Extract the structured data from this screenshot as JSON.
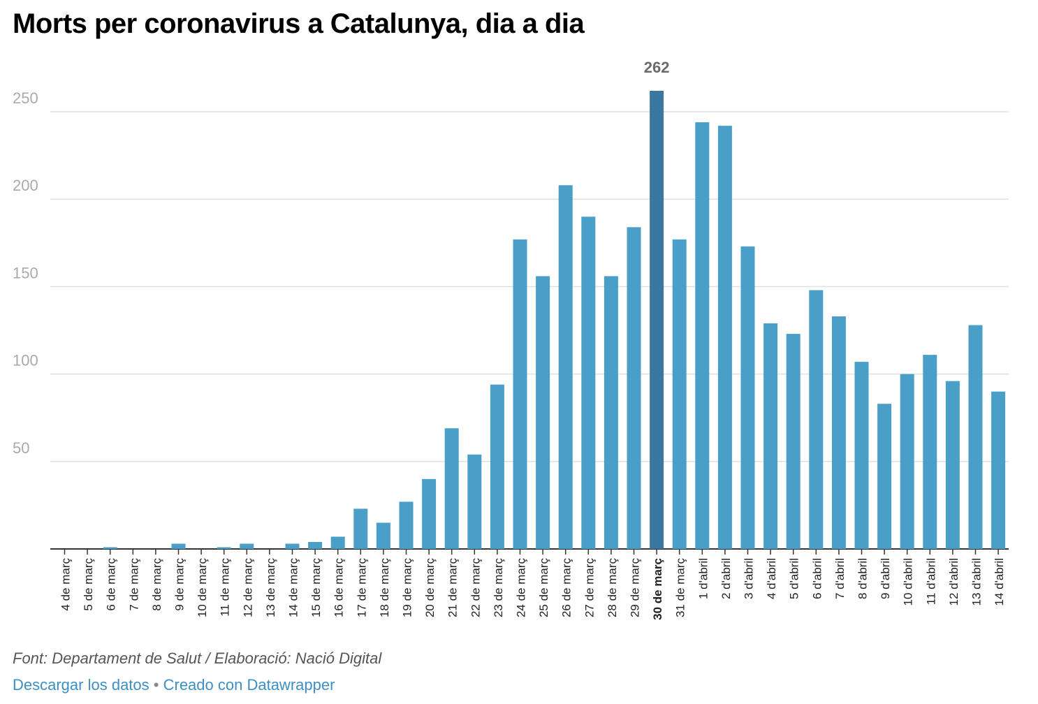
{
  "title": "Morts per coronavirus a Catalunya, dia a dia",
  "footer": {
    "source": "Font: Departament de Salut / Elaboració: Nació Digital",
    "download_label": "Descargar los datos",
    "separator": "•",
    "created_label": "Creado con Datawrapper"
  },
  "colors": {
    "bar": "#4a9fc9",
    "bar_highlight": "#3a77a1",
    "grid": "#e0e0e0",
    "axis_label": "#aaaaaa",
    "tick_label": "#222222",
    "highlight_label": "#6b6b6b"
  },
  "chart_data": {
    "type": "bar",
    "title": "Morts per coronavirus a Catalunya, dia a dia",
    "xlabel": "",
    "ylabel": "",
    "ylim": [
      0,
      262
    ],
    "yticks": [
      50,
      100,
      150,
      200,
      250
    ],
    "grid": true,
    "highlight": {
      "category": "30 de març",
      "label": "262"
    },
    "categories": [
      "4 de març",
      "5 de març",
      "6 de març",
      "7 de març",
      "8 de març",
      "9 de març",
      "10 de març",
      "11 de març",
      "12 de març",
      "13 de març",
      "14 de març",
      "15 de març",
      "16 de març",
      "17 de març",
      "18 de març",
      "19 de març",
      "20 de març",
      "21 de març",
      "22 de març",
      "23 de març",
      "24 de març",
      "25 de març",
      "26 de març",
      "27 de març",
      "28 de març",
      "29 de març",
      "30 de març",
      "31 de març",
      "1 d'abril",
      "2 d'abril",
      "3 d'abril",
      "4 d'abril",
      "5 d'abril",
      "6 d'abril",
      "7 d'abril",
      "8 d'abril",
      "9 d'abril",
      "10 d'abril",
      "11 d'abril",
      "12 d'abril",
      "13 d'abril",
      "14 d'abril"
    ],
    "values": [
      0,
      0,
      1,
      0,
      0,
      3,
      0,
      1,
      3,
      0,
      3,
      4,
      7,
      23,
      15,
      27,
      40,
      69,
      54,
      94,
      177,
      156,
      208,
      190,
      156,
      184,
      262,
      177,
      244,
      242,
      173,
      129,
      123,
      148,
      133,
      107,
      83,
      100,
      111,
      96,
      128,
      90
    ]
  }
}
